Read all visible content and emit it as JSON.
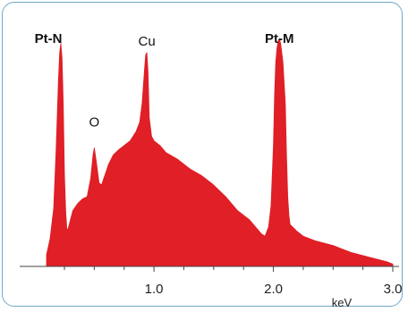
{
  "chart_data": {
    "type": "area",
    "title": "",
    "xlabel": "keV",
    "ylabel": "",
    "xlim": [
      0,
      3.0
    ],
    "ylim": [
      0,
      100
    ],
    "grid": false,
    "x_ticks": [
      1.0,
      2.0,
      3.0
    ],
    "x_tick_labels": [
      "1.0",
      "2.0",
      "3.0"
    ],
    "fill_color": "#e01f26",
    "series": [
      {
        "x": [
          0.1,
          0.13,
          0.16,
          0.18,
          0.2,
          0.21,
          0.22,
          0.23,
          0.24,
          0.25,
          0.26,
          0.27,
          0.28,
          0.3,
          0.32,
          0.36,
          0.4,
          0.44,
          0.47,
          0.49,
          0.5,
          0.52,
          0.54,
          0.56,
          0.58,
          0.62,
          0.66,
          0.7,
          0.75,
          0.8,
          0.85,
          0.88,
          0.9,
          0.92,
          0.93,
          0.94,
          0.95,
          0.96,
          0.98,
          1.0,
          1.05,
          1.1,
          1.2,
          1.3,
          1.4,
          1.5,
          1.6,
          1.7,
          1.8,
          1.85,
          1.9,
          1.93,
          1.96,
          1.98,
          2.0,
          2.01,
          2.02,
          2.03,
          2.04,
          2.05,
          2.06,
          2.08,
          2.1,
          2.11,
          2.12,
          2.13,
          2.14,
          2.16,
          2.18,
          2.2,
          2.25,
          2.35,
          2.5,
          2.65,
          2.8,
          2.95,
          3.0
        ],
        "y": [
          5,
          12,
          25,
          50,
          80,
          92,
          96,
          90,
          70,
          40,
          24,
          16,
          16,
          20,
          24,
          27,
          29,
          30,
          38,
          48,
          51,
          44,
          36,
          35,
          38,
          44,
          48,
          50,
          52,
          54,
          58,
          62,
          70,
          84,
          91,
          92,
          84,
          64,
          56,
          54,
          52,
          49,
          46,
          42,
          39,
          35,
          30,
          24,
          20,
          17,
          14,
          13,
          17,
          26,
          52,
          74,
          88,
          94,
          97,
          98,
          96,
          88,
          70,
          48,
          30,
          22,
          18,
          17,
          16,
          15,
          13,
          11,
          9,
          6,
          4,
          2,
          1
        ]
      }
    ],
    "annotations": [
      {
        "text": "Pt-N",
        "x": 0.22,
        "y": 96,
        "bold": true
      },
      {
        "text": "O",
        "x": 0.5,
        "y": 51,
        "bold": false
      },
      {
        "text": "Cu",
        "x": 0.94,
        "y": 92,
        "bold": false
      },
      {
        "text": "Pt-M",
        "x": 2.05,
        "y": 98,
        "bold": true
      }
    ]
  }
}
